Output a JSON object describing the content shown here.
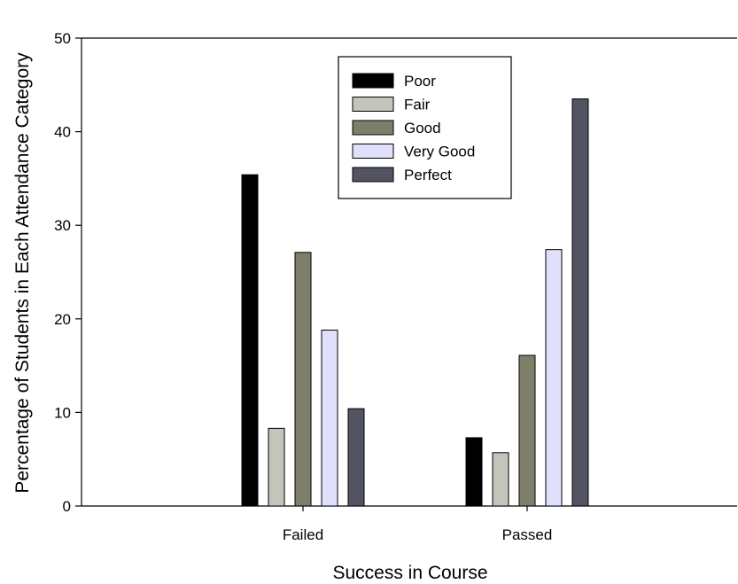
{
  "chart_data": {
    "type": "bar",
    "title": "",
    "xlabel": "Success in Course",
    "ylabel": "Percentage of Students in Each Attendance Category",
    "categories": [
      "Failed",
      "Passed"
    ],
    "ylim": [
      0,
      50
    ],
    "yticks": [
      "0",
      "10",
      "20",
      "30",
      "40",
      "50"
    ],
    "legend_position": "top-center",
    "grid": false,
    "series": [
      {
        "name": "Poor",
        "color": "#000000",
        "values": [
          35.4,
          7.3
        ]
      },
      {
        "name": "Fair",
        "color": "#c4c4bc",
        "values": [
          8.3,
          5.7
        ]
      },
      {
        "name": "Good",
        "color": "#7f7e68",
        "values": [
          27.1,
          16.1
        ]
      },
      {
        "name": "Very Good",
        "color": "#e0e0fc",
        "values": [
          18.8,
          27.4
        ]
      },
      {
        "name": "Perfect",
        "color": "#525462",
        "values": [
          10.4,
          43.5
        ]
      }
    ]
  }
}
